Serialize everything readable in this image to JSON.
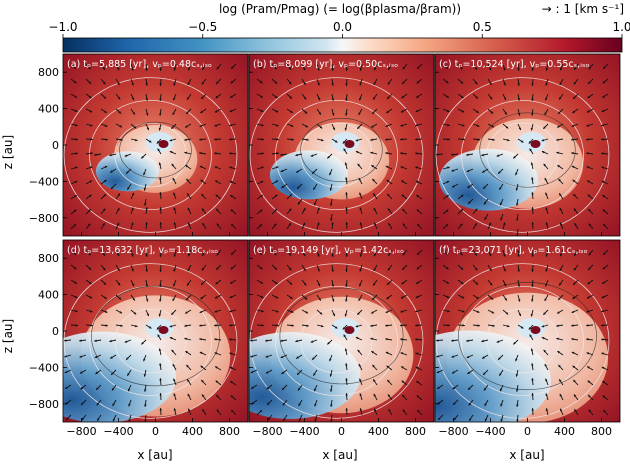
{
  "chart_data": {
    "type": "heatmap",
    "colorbar": {
      "title": "log (Pram/Pmag) (= log(βplasma/βram))",
      "ticks": [
        "−1.0",
        "−0.5",
        "0.0",
        "0.5",
        "1.0"
      ],
      "range": [
        -1.0,
        1.0
      ],
      "colormap": "RdBu_r"
    },
    "vector_key": {
      "label": "→ : 1 [km s⁻¹]"
    },
    "xlabel": "x [au]",
    "ylabel": "z [au]",
    "xlim": [
      -1000,
      1000
    ],
    "ylim": [
      -1000,
      1000
    ],
    "x_ticks": [
      "−800",
      "−400",
      "0",
      "400",
      "800"
    ],
    "y_ticks": [
      "800",
      "400",
      "0",
      "−400",
      "−800"
    ],
    "panels": [
      {
        "label": "(a)",
        "time": "tₚ=5,885 [yr], vₚ=0.48cₛ,ᵢₛₒ",
        "blue_lobe": 0.18
      },
      {
        "label": "(b)",
        "time": "tₚ=8,099 [yr], vₚ=0.50cₛ,ᵢₛₒ",
        "blue_lobe": 0.28
      },
      {
        "label": "(c)",
        "time": "tₚ=10,524 [yr], vₚ=0.55cₛ,ᵢₛₒ",
        "blue_lobe": 0.42
      },
      {
        "label": "(d)",
        "time": "tₚ=13,632 [yr], vₚ=1.18cₛ,ᵢₛₒ",
        "blue_lobe": 0.75
      },
      {
        "label": "(e)",
        "time": "tₚ=19,149 [yr], vₚ=1.42cₛ,ᵢₛₒ",
        "blue_lobe": 0.7
      },
      {
        "label": "(f)",
        "time": "tₚ=23,071 [yr], vₚ=1.61cₛ,ᵢₛₒ",
        "blue_lobe": 0.85
      }
    ],
    "grid": false
  }
}
